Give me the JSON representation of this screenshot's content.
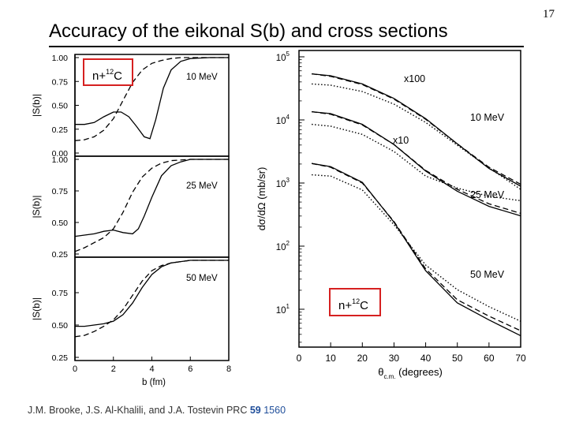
{
  "slide": {
    "title": "Accuracy of the eikonal S(b) and cross sections",
    "page_number": "17",
    "citation": {
      "authors": "J.M. Brooke, J.S. Al-Khalili, and J.A. Tostevin PRC ",
      "volume": "59",
      "pages": " 1560"
    }
  },
  "chart_data": [
    {
      "type": "line",
      "id": "sb",
      "panels": [
        {
          "label": "10 MeV",
          "ylabel": "|S(b)|",
          "yticks": [
            "1.00",
            "0.75",
            "0.50",
            "0.25",
            "0.00"
          ],
          "ylim": [
            0,
            1
          ],
          "inset": "n+12C",
          "series": [
            {
              "name": "exact",
              "style": "solid",
              "x": [
                0,
                0.5,
                1,
                1.5,
                2,
                2.4,
                2.8,
                3.2,
                3.6,
                3.9,
                4.2,
                4.6,
                5,
                5.5,
                6,
                7,
                8
              ],
              "y": [
                0.3,
                0.3,
                0.32,
                0.38,
                0.43,
                0.43,
                0.38,
                0.28,
                0.17,
                0.15,
                0.35,
                0.68,
                0.87,
                0.96,
                0.99,
                1.0,
                1.0
              ]
            },
            {
              "name": "eikonal",
              "style": "dashed",
              "x": [
                0,
                0.5,
                1,
                1.5,
                2,
                2.5,
                3,
                3.5,
                4,
                4.5,
                5,
                5.5,
                6,
                7,
                8
              ],
              "y": [
                0.13,
                0.14,
                0.17,
                0.24,
                0.36,
                0.55,
                0.74,
                0.87,
                0.94,
                0.97,
                0.99,
                1.0,
                1.0,
                1.0,
                1.0
              ]
            }
          ]
        },
        {
          "label": "25 MeV",
          "ylabel": "|S(b)|",
          "yticks": [
            "1.00",
            "0.75",
            "0.50",
            "0.25"
          ],
          "ylim": [
            0.25,
            1
          ],
          "series": [
            {
              "name": "exact",
              "style": "solid",
              "x": [
                0,
                0.5,
                1,
                1.5,
                2,
                2.5,
                3,
                3.3,
                3.6,
                4,
                4.5,
                5,
                5.5,
                6,
                7,
                8
              ],
              "y": [
                0.39,
                0.4,
                0.41,
                0.43,
                0.44,
                0.42,
                0.41,
                0.45,
                0.55,
                0.7,
                0.87,
                0.95,
                0.98,
                1.0,
                1.0,
                1.0
              ]
            },
            {
              "name": "eikonal",
              "style": "dashed",
              "x": [
                0,
                0.5,
                1,
                1.5,
                2,
                2.5,
                3,
                3.5,
                4,
                4.5,
                5,
                6,
                7,
                8
              ],
              "y": [
                0.27,
                0.3,
                0.34,
                0.38,
                0.45,
                0.58,
                0.74,
                0.86,
                0.93,
                0.97,
                0.99,
                1.0,
                1.0,
                1.0
              ]
            }
          ]
        },
        {
          "label": "50 MeV",
          "ylabel": "|S(b)|",
          "yticks": [
            "0.75",
            "0.50",
            "0.25"
          ],
          "ylim": [
            0.25,
            1
          ],
          "series": [
            {
              "name": "exact",
              "style": "solid",
              "x": [
                0,
                0.5,
                1,
                1.5,
                2,
                2.5,
                3,
                3.5,
                4,
                4.5,
                5,
                5.5,
                6,
                7,
                8
              ],
              "y": [
                0.49,
                0.49,
                0.5,
                0.51,
                0.53,
                0.58,
                0.67,
                0.79,
                0.89,
                0.95,
                0.98,
                0.99,
                1.0,
                1.0,
                1.0
              ]
            },
            {
              "name": "eikonal",
              "style": "dashed",
              "x": [
                0,
                0.5,
                1,
                1.5,
                2,
                2.5,
                3,
                3.5,
                4,
                4.5,
                5,
                6,
                7,
                8
              ],
              "y": [
                0.41,
                0.42,
                0.45,
                0.49,
                0.54,
                0.62,
                0.73,
                0.84,
                0.92,
                0.96,
                0.98,
                1.0,
                1.0,
                1.0
              ]
            }
          ]
        }
      ],
      "xlabel": "b (fm)",
      "xticks": [
        0,
        2,
        4,
        6,
        8
      ],
      "xlim": [
        0,
        8
      ]
    },
    {
      "type": "line",
      "id": "xs",
      "ylabel": "dσ/dΩ  (mb/sr)",
      "xlabel": "θ",
      "xlabel_sub": "c.m.",
      "xlabel_tail": " (degrees)",
      "xticks": [
        0,
        10,
        20,
        30,
        40,
        50,
        60,
        70
      ],
      "xlim": [
        0,
        70
      ],
      "yscale": "log",
      "ylim_log10": [
        0.4,
        5.1
      ],
      "yticks": [
        {
          "exp": 1,
          "label": "10",
          "sup": "1"
        },
        {
          "exp": 2,
          "label": "10",
          "sup": "2"
        },
        {
          "exp": 3,
          "label": "10",
          "sup": "3"
        },
        {
          "exp": 4,
          "label": "10",
          "sup": "4"
        },
        {
          "exp": 5,
          "label": "10",
          "sup": "5"
        }
      ],
      "annotations": [
        "x100",
        "x10",
        "10 MeV",
        "25 MeV",
        "50 MeV"
      ],
      "inset": "n+12C",
      "series": [
        {
          "name": "10 MeV exact",
          "style": "solid",
          "x": [
            4,
            10,
            20,
            30,
            40,
            50,
            60,
            70
          ],
          "log10y": [
            4.73,
            4.7,
            4.57,
            4.34,
            4.02,
            3.62,
            3.23,
            2.95
          ]
        },
        {
          "name": "10 MeV eikonal",
          "style": "dashed",
          "x": [
            4,
            10,
            20,
            30,
            40,
            50,
            60,
            70
          ],
          "log10y": [
            4.73,
            4.69,
            4.56,
            4.33,
            4.01,
            3.62,
            3.25,
            2.98
          ]
        },
        {
          "name": "10 MeV dotted",
          "style": "dotted",
          "x": [
            4,
            10,
            20,
            30,
            40,
            50,
            60,
            70
          ],
          "log10y": [
            4.57,
            4.55,
            4.45,
            4.25,
            3.96,
            3.6,
            3.24,
            2.9
          ]
        },
        {
          "name": "25 MeV exact",
          "style": "solid",
          "x": [
            4,
            10,
            20,
            30,
            40,
            50,
            60,
            70
          ],
          "log10y": [
            4.13,
            4.1,
            3.93,
            3.61,
            3.19,
            2.87,
            2.63,
            2.48
          ]
        },
        {
          "name": "25 MeV eikonal",
          "style": "dashed",
          "x": [
            4,
            10,
            20,
            30,
            40,
            50,
            60,
            70
          ],
          "log10y": [
            4.13,
            4.09,
            3.92,
            3.61,
            3.2,
            2.9,
            2.67,
            2.52
          ]
        },
        {
          "name": "25 MeV dotted",
          "style": "dotted",
          "x": [
            4,
            10,
            20,
            30,
            40,
            50,
            60,
            70
          ],
          "log10y": [
            3.93,
            3.9,
            3.77,
            3.5,
            3.11,
            2.92,
            2.79,
            2.72
          ]
        },
        {
          "name": "50 MeV exact",
          "style": "solid",
          "x": [
            4,
            10,
            20,
            30,
            40,
            50,
            60,
            70
          ],
          "log10y": [
            3.31,
            3.26,
            3.01,
            2.38,
            1.61,
            1.1,
            0.83,
            0.58
          ]
        },
        {
          "name": "50 MeV eikonal",
          "style": "dashed",
          "x": [
            4,
            10,
            20,
            30,
            40,
            50,
            60,
            70
          ],
          "log10y": [
            3.31,
            3.25,
            3.0,
            2.39,
            1.64,
            1.15,
            0.89,
            0.66
          ]
        },
        {
          "name": "50 MeV dotted",
          "style": "dotted",
          "x": [
            4,
            10,
            20,
            30,
            40,
            50,
            60,
            70
          ],
          "log10y": [
            3.13,
            3.11,
            2.89,
            2.34,
            1.7,
            1.31,
            1.04,
            0.81
          ]
        }
      ]
    }
  ],
  "colors": {
    "text": "#000000",
    "citation_accent": "#1f4e9a",
    "inset_box": "#d62020"
  }
}
